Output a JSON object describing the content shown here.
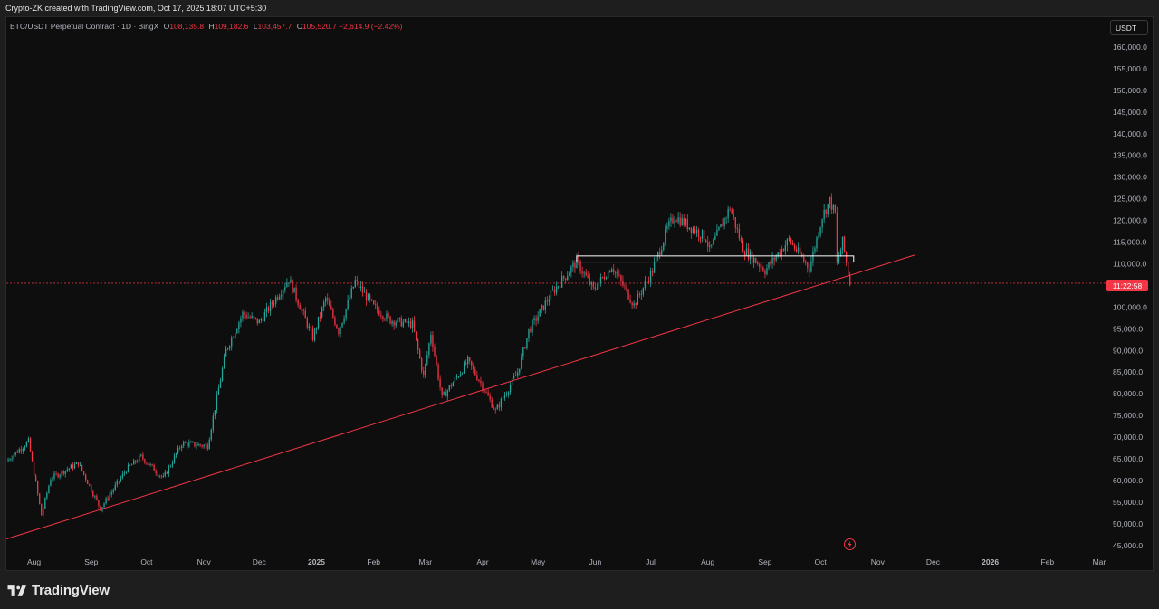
{
  "header": {
    "credit": "Crypto-ZK created with TradingView.com, Oct 17, 2025 18:07 UTC+5:30"
  },
  "legend": {
    "symbol": "BTC/USDT Perpetual Contract · 1D · BingX",
    "open_label": "O",
    "open": "108,135.8",
    "high_label": "H",
    "high": "109,182.6",
    "low_label": "L",
    "low": "103,457.7",
    "close_label": "C",
    "close": "105,520.7",
    "change": "−2,614.9 (−2.42%)"
  },
  "price_axis": {
    "unit": "USDT",
    "countdown": "11:22:58"
  },
  "footer": {
    "brand": "TradingView"
  },
  "colors": {
    "up": "#26a69a",
    "down": "#f23645",
    "trendline": "#f23645",
    "background": "#0e0e0e",
    "box": "#ffffff"
  },
  "chart_data": {
    "type": "candlestick",
    "y_ticks": [
      "160,000.0",
      "155,000.0",
      "150,000.0",
      "145,000.0",
      "140,000.0",
      "135,000.0",
      "130,000.0",
      "125,000.0",
      "120,000.0",
      "115,000.0",
      "110,000.0",
      "105,000.0",
      "100,000.0",
      "95,000.0",
      "90,000.0",
      "85,000.0",
      "80,000.0",
      "75,000.0",
      "70,000.0",
      "65,000.0",
      "60,000.0",
      "55,000.0",
      "50,000.0",
      "45,000.0"
    ],
    "ylim": [
      43500,
      162500
    ],
    "x_ticks": [
      "Aug",
      "Sep",
      "Oct",
      "Nov",
      "Dec",
      "2025",
      "Feb",
      "Mar",
      "Apr",
      "May",
      "Jun",
      "Jul",
      "Aug",
      "Sep",
      "Oct",
      "Nov",
      "Dec",
      "2026",
      "Feb",
      "Mar"
    ],
    "x_tick_dates": [
      "2024-08-01",
      "2024-09-01",
      "2024-10-01",
      "2024-11-01",
      "2024-12-01",
      "2025-01-01",
      "2025-02-01",
      "2025-03-01",
      "2025-04-01",
      "2025-05-01",
      "2025-06-01",
      "2025-07-01",
      "2025-08-01",
      "2025-09-01",
      "2025-10-01",
      "2025-11-01",
      "2025-12-01",
      "2026-01-01",
      "2026-02-01",
      "2026-03-01"
    ],
    "xlim": [
      "2024-07-17",
      "2026-03-03"
    ],
    "price_path": [
      [
        "2024-07-17",
        64500
      ],
      [
        "2024-07-29",
        69000
      ],
      [
        "2024-08-05",
        52000
      ],
      [
        "2024-08-10",
        60500
      ],
      [
        "2024-08-25",
        64000
      ],
      [
        "2024-09-06",
        53500
      ],
      [
        "2024-09-20",
        62500
      ],
      [
        "2024-09-28",
        65500
      ],
      [
        "2024-10-10",
        60500
      ],
      [
        "2024-10-20",
        68500
      ],
      [
        "2024-11-03",
        68000
      ],
      [
        "2024-11-13",
        90000
      ],
      [
        "2024-11-22",
        98500
      ],
      [
        "2024-12-01",
        96500
      ],
      [
        "2024-12-17",
        106500
      ],
      [
        "2024-12-30",
        93000
      ],
      [
        "2025-01-06",
        102000
      ],
      [
        "2025-01-13",
        94500
      ],
      [
        "2025-01-22",
        106000
      ],
      [
        "2025-02-01",
        100000
      ],
      [
        "2025-02-10",
        97000
      ],
      [
        "2025-02-22",
        96000
      ],
      [
        "2025-02-28",
        84000
      ],
      [
        "2025-03-04",
        94000
      ],
      [
        "2025-03-10",
        79000
      ],
      [
        "2025-03-24",
        87500
      ],
      [
        "2025-03-31",
        82500
      ],
      [
        "2025-04-08",
        76000
      ],
      [
        "2025-04-20",
        85000
      ],
      [
        "2025-04-26",
        94500
      ],
      [
        "2025-05-08",
        103000
      ],
      [
        "2025-05-22",
        110500
      ],
      [
        "2025-05-31",
        104000
      ],
      [
        "2025-06-10",
        109500
      ],
      [
        "2025-06-22",
        100500
      ],
      [
        "2025-07-02",
        108500
      ],
      [
        "2025-07-10",
        118000
      ],
      [
        "2025-07-14",
        121000
      ],
      [
        "2025-07-31",
        116000
      ],
      [
        "2025-08-02",
        113000
      ],
      [
        "2025-08-13",
        123000
      ],
      [
        "2025-08-20",
        113500
      ],
      [
        "2025-09-01",
        108500
      ],
      [
        "2025-09-14",
        115500
      ],
      [
        "2025-09-25",
        109000
      ],
      [
        "2025-10-02",
        121000
      ],
      [
        "2025-10-06",
        124500
      ],
      [
        "2025-10-09",
        121500
      ],
      [
        "2025-10-10",
        110000
      ],
      [
        "2025-10-13",
        115000
      ],
      [
        "2025-10-16",
        108000
      ],
      [
        "2025-10-17",
        105520
      ]
    ],
    "trendline": [
      [
        "2024-07-17",
        46500
      ],
      [
        "2025-11-21",
        112000
      ]
    ],
    "range_box": {
      "from": "2025-05-22",
      "to": "2025-10-19",
      "top": 111800,
      "bottom": 110400
    },
    "last_price": 105520.7
  }
}
